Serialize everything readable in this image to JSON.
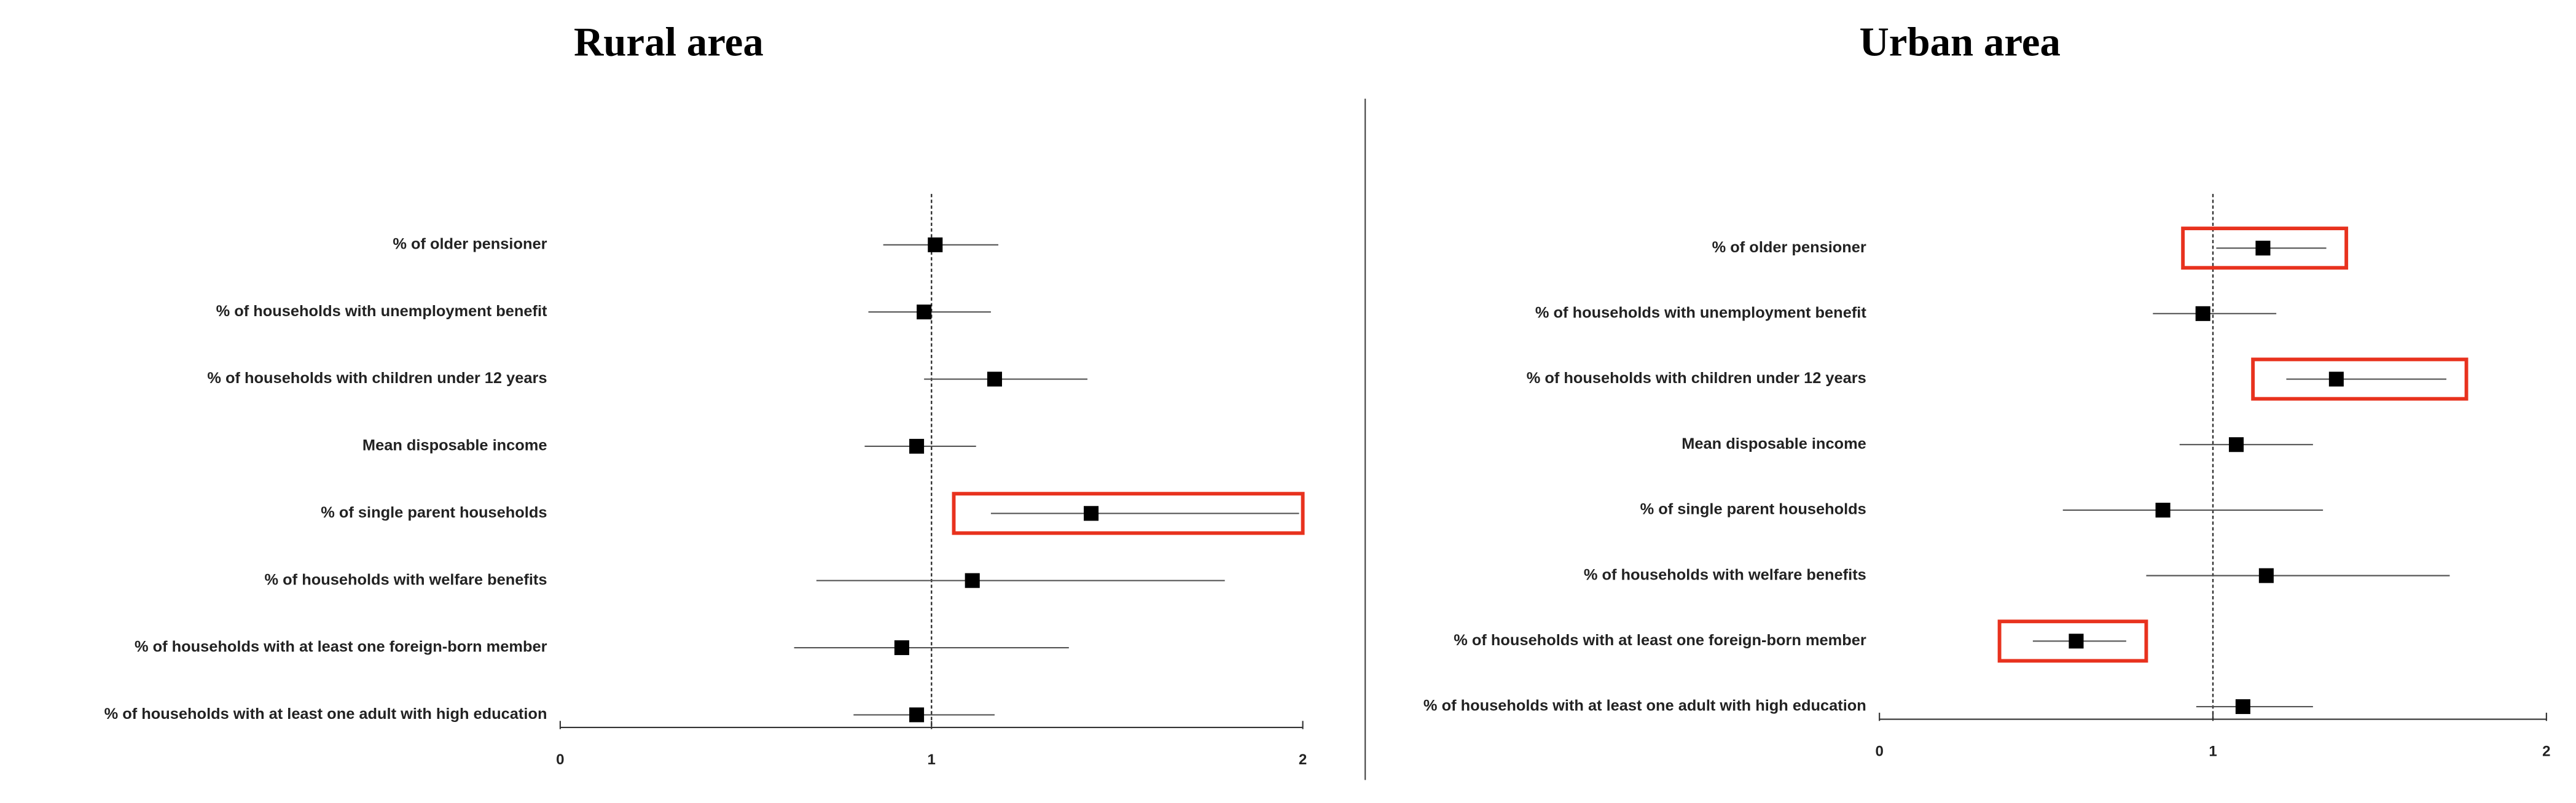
{
  "chart_data": [
    {
      "type": "forest",
      "title": "Rural area",
      "categories": [
        "% of older pensioner",
        "% of households with unemployment benefit",
        "% of households with children under 12 years",
        "Mean disposable income",
        "% of single parent households",
        "% of households with welfare benefits",
        "% of households with at least one foreign-born member",
        "% of households with at least one adult with high education"
      ],
      "values": [
        1.01,
        0.98,
        1.17,
        0.96,
        1.43,
        1.11,
        0.92,
        0.96
      ],
      "lower": [
        0.87,
        0.83,
        0.98,
        0.82,
        1.16,
        0.69,
        0.63,
        0.79
      ],
      "upper": [
        1.18,
        1.16,
        1.42,
        1.12,
        1.99,
        1.79,
        1.37,
        1.17
      ],
      "xlim": [
        0,
        2
      ],
      "xticks": [
        0,
        1,
        2
      ],
      "reference_line": 1,
      "highlight_rows": [
        4
      ],
      "highlight_color": "#e8321e",
      "color": "#000000"
    },
    {
      "type": "forest",
      "title": "Urban area",
      "categories": [
        "% of older pensioner",
        "% of households with unemployment benefit",
        "% of households with children under 12 years",
        "Mean disposable income",
        "% of single parent households",
        "% of households with welfare benefits",
        "% of households with at least one foreign-born member",
        "% of households with at least one adult with high education"
      ],
      "values": [
        1.15,
        0.97,
        1.37,
        1.07,
        0.85,
        1.16,
        0.59,
        1.09
      ],
      "lower": [
        1.01,
        0.82,
        1.22,
        0.9,
        0.55,
        0.8,
        0.46,
        0.95
      ],
      "upper": [
        1.34,
        1.19,
        1.7,
        1.3,
        1.33,
        1.71,
        0.74,
        1.3
      ],
      "xlim": [
        0,
        2
      ],
      "xticks": [
        0,
        1,
        2
      ],
      "reference_line": 1,
      "highlight_rows": [
        0,
        2,
        6
      ],
      "highlight_color": "#e8321e",
      "color": "#000000"
    }
  ]
}
